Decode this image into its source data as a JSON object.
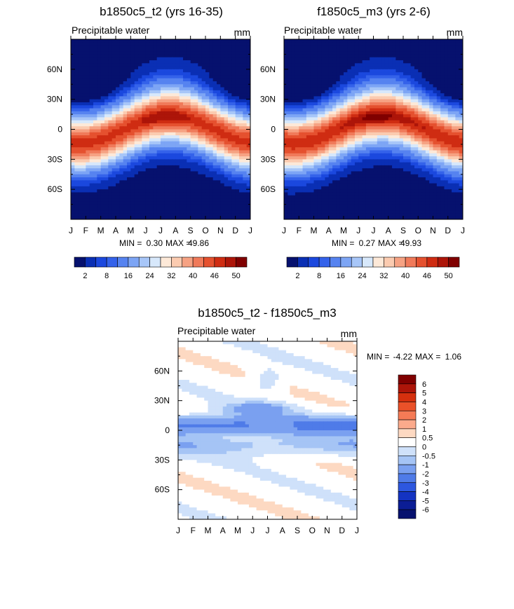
{
  "chart_data": [
    {
      "type": "heatmap",
      "title": "b1850c5_t2 (yrs 16-35)",
      "left_label": "Precipitable water",
      "units": "mm",
      "x_ticks": [
        "J",
        "F",
        "M",
        "A",
        "M",
        "J",
        "J",
        "A",
        "S",
        "O",
        "N",
        "D",
        "J"
      ],
      "y_ticks": [
        "60N",
        "30N",
        "0",
        "30S",
        "60S"
      ],
      "y_tick_values": [
        60,
        30,
        0,
        -30,
        -60
      ],
      "ylim": [
        -90,
        90
      ],
      "stats": {
        "min_label": "MIN =",
        "min": "0.30",
        "max_label": "MAX =",
        "max": "49.86"
      },
      "field": {
        "equator_max": 45,
        "mid_value": 24,
        "pole_min": 1
      },
      "colorbar": {
        "orientation": "horizontal",
        "labels": [
          "2",
          "8",
          "16",
          "24",
          "32",
          "40",
          "46",
          "50"
        ],
        "colors": [
          "#06116e",
          "#0a2fb4",
          "#1b48de",
          "#3462ea",
          "#5683f0",
          "#7da5f5",
          "#a7c6f8",
          "#d7e8fb",
          "#fde9d8",
          "#fbcbb0",
          "#f6a283",
          "#f07a5a",
          "#e5512f",
          "#cf2c12",
          "#ad1509",
          "#800000"
        ]
      }
    },
    {
      "type": "heatmap",
      "title": "f1850c5_m3 (yrs 2-6)",
      "left_label": "Precipitable water",
      "units": "mm",
      "x_ticks": [
        "J",
        "F",
        "M",
        "A",
        "M",
        "J",
        "J",
        "A",
        "S",
        "O",
        "N",
        "D",
        "J"
      ],
      "y_ticks": [
        "60N",
        "30N",
        "0",
        "30S",
        "60S"
      ],
      "y_tick_values": [
        60,
        30,
        0,
        -30,
        -60
      ],
      "ylim": [
        -90,
        90
      ],
      "stats": {
        "min_label": "MIN =",
        "min": "0.27",
        "max_label": "MAX =",
        "max": "49.93"
      },
      "field": {
        "equator_max": 46,
        "mid_value": 24,
        "pole_min": 1
      },
      "colorbar": {
        "orientation": "horizontal",
        "labels": [
          "2",
          "8",
          "16",
          "24",
          "32",
          "40",
          "46",
          "50"
        ],
        "colors": [
          "#06116e",
          "#0a2fb4",
          "#1b48de",
          "#3462ea",
          "#5683f0",
          "#7da5f5",
          "#a7c6f8",
          "#d7e8fb",
          "#fde9d8",
          "#fbcbb0",
          "#f6a283",
          "#f07a5a",
          "#e5512f",
          "#cf2c12",
          "#ad1509",
          "#800000"
        ]
      }
    },
    {
      "type": "heatmap",
      "title": "b1850c5_t2 - f1850c5_m3",
      "left_label": "Precipitable water",
      "units": "mm",
      "x_ticks": [
        "J",
        "F",
        "M",
        "A",
        "M",
        "J",
        "J",
        "A",
        "S",
        "O",
        "N",
        "D",
        "J"
      ],
      "y_ticks": [
        "60N",
        "30N",
        "0",
        "30S",
        "60S"
      ],
      "y_tick_values": [
        60,
        30,
        0,
        -30,
        -60
      ],
      "ylim": [
        -90,
        90
      ],
      "stats": {
        "min_label": "MIN =",
        "min": "-4.22",
        "max_label": "MAX =",
        "max": "1.06"
      },
      "levels": [
        -6,
        -5,
        -4,
        -3,
        -2,
        -1,
        -0.5,
        0,
        0.5,
        1,
        2,
        3,
        4,
        5,
        6
      ],
      "colorbar": {
        "orientation": "vertical",
        "labels": [
          "6",
          "5",
          "4",
          "3",
          "2",
          "1",
          "0.5",
          "0",
          "-0.5",
          "-1",
          "-2",
          "-3",
          "-4",
          "-5",
          "-6"
        ],
        "colors": [
          "#800000",
          "#ad1509",
          "#d5300e",
          "#ea5129",
          "#f57b56",
          "#fbaa8c",
          "#fdd9c2",
          "#ffffff",
          "#cfe1fa",
          "#a5c4f5",
          "#7aa0f0",
          "#4f7be8",
          "#2d57df",
          "#1433c2",
          "#0b1d95",
          "#06116e"
        ]
      }
    }
  ]
}
